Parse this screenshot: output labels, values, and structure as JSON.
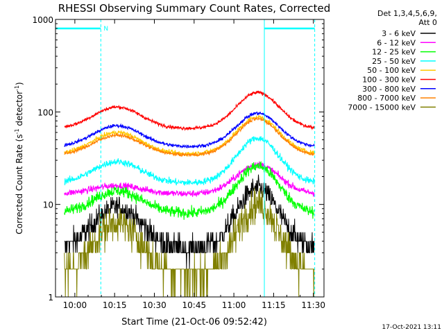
{
  "chart_data": {
    "type": "line",
    "title": "RHESSI Observing Summary Count Rates, Corrected",
    "xlabel": "Start Time (21-Oct-06 09:52:42)",
    "ylabel_prefix": "Corrected Count Rate (s",
    "ylabel_exp1": "-1",
    "ylabel_mid": " detector",
    "ylabel_exp2": "-1",
    "ylabel_suffix": ")",
    "yscale": "log",
    "ylim": [
      1,
      1000
    ],
    "xlim_minutes": [
      -7.3,
      94
    ],
    "x_ticks": [
      {
        "label": "10:00",
        "minutes": 0
      },
      {
        "label": "10:15",
        "minutes": 15
      },
      {
        "label": "10:30",
        "minutes": 30
      },
      {
        "label": "10:45",
        "minutes": 45
      },
      {
        "label": "11:00",
        "minutes": 60
      },
      {
        "label": "11:15",
        "minutes": 75
      },
      {
        "label": "11:30",
        "minutes": 90
      }
    ],
    "y_ticks": [
      {
        "label": "1",
        "value": 1
      },
      {
        "label": "10",
        "value": 10
      },
      {
        "label": "100",
        "value": 100
      },
      {
        "label": "1000",
        "value": 1000
      }
    ],
    "legend_header": [
      "Det 1,3,4,5,6,9,",
      "Att 0"
    ],
    "legend_position": "right",
    "night_marker_label": "N",
    "series": [
      {
        "name": "3 - 6 keV",
        "color": "#000000",
        "base": 3.3,
        "peak1": 9.3,
        "peak2": 15,
        "noise": 0.2
      },
      {
        "name": "6 - 12 keV",
        "color": "#ff00ff",
        "base": 13,
        "peak1": 16,
        "peak2": 27,
        "noise": 0.06
      },
      {
        "name": "12 - 25 keV",
        "color": "#00ff00",
        "base": 8,
        "peak1": 14,
        "peak2": 26,
        "noise": 0.1
      },
      {
        "name": "25 - 50 keV",
        "color": "#00ffff",
        "base": 17,
        "peak1": 29,
        "peak2": 52,
        "noise": 0.06
      },
      {
        "name": "50 - 100 keV",
        "color": "#ffc800",
        "base": 35,
        "peak1": 60,
        "peak2": 88,
        "noise": 0.04
      },
      {
        "name": "100 - 300 keV",
        "color": "#ff0000",
        "base": 66,
        "peak1": 113,
        "peak2": 162,
        "noise": 0.03
      },
      {
        "name": "300 - 800 keV",
        "color": "#0000ff",
        "base": 42,
        "peak1": 71,
        "peak2": 97,
        "noise": 0.03
      },
      {
        "name": "800 - 7000 keV",
        "color": "#ff8000",
        "base": 34,
        "peak1": 56,
        "peak2": 84,
        "noise": 0.03
      },
      {
        "name": "7000 - 15000 keV",
        "color": "#808000",
        "base": 1.7,
        "peak1": 6.3,
        "peak2": 10,
        "noise": 0.3
      }
    ],
    "peak_times_minutes": [
      16,
      69
    ],
    "peak_widths_minutes": [
      9,
      8
    ],
    "data_gaps_minutes": [
      [
        -7.3,
        -4
      ],
      [
        90.5,
        94
      ]
    ],
    "attenuator_markers_minutes": [
      9.8,
      71.5,
      90.5
    ],
    "timestamp": "17-Oct-2021 13:11"
  }
}
